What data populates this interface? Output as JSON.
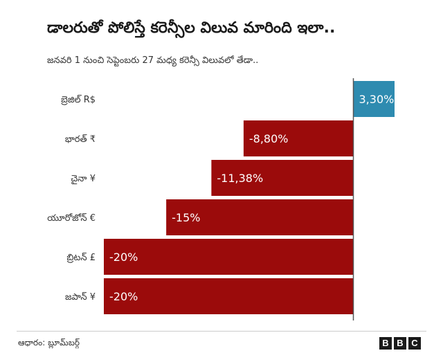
{
  "header": {
    "title": "డాలరుతో పోలిస్తే కరెన్సీల విలువ మారింది ఇలా..",
    "subtitle": "జనవరి 1 నుంచి సెప్టెంబరు 27 మధ్య కరెన్సీ విలువలో తేడా.."
  },
  "chart_data": {
    "type": "bar",
    "orientation": "horizontal",
    "categories": [
      "బ్రెజిల్ R$",
      "భారత్ ₹",
      "చైనా ¥",
      "యూరోజోన్ €",
      "బ్రిటన్ £",
      "జపాన్ ¥"
    ],
    "values": [
      3.3,
      -8.8,
      -11.38,
      -15,
      -20,
      -20
    ],
    "value_labels": [
      "3,30%",
      "-8,80%",
      "-11,38%",
      "-15%",
      "-20%",
      "-20%"
    ],
    "colors": {
      "positive": "#2e8bb0",
      "negative": "#9b0b0b",
      "axis": "#555555"
    },
    "xlim": [
      -20,
      3.3
    ],
    "grid": false,
    "legend": "none"
  },
  "footer": {
    "source": "ఆధారం: బ్లూమ్‌బర్గ్",
    "logo": [
      "B",
      "B",
      "C"
    ]
  }
}
